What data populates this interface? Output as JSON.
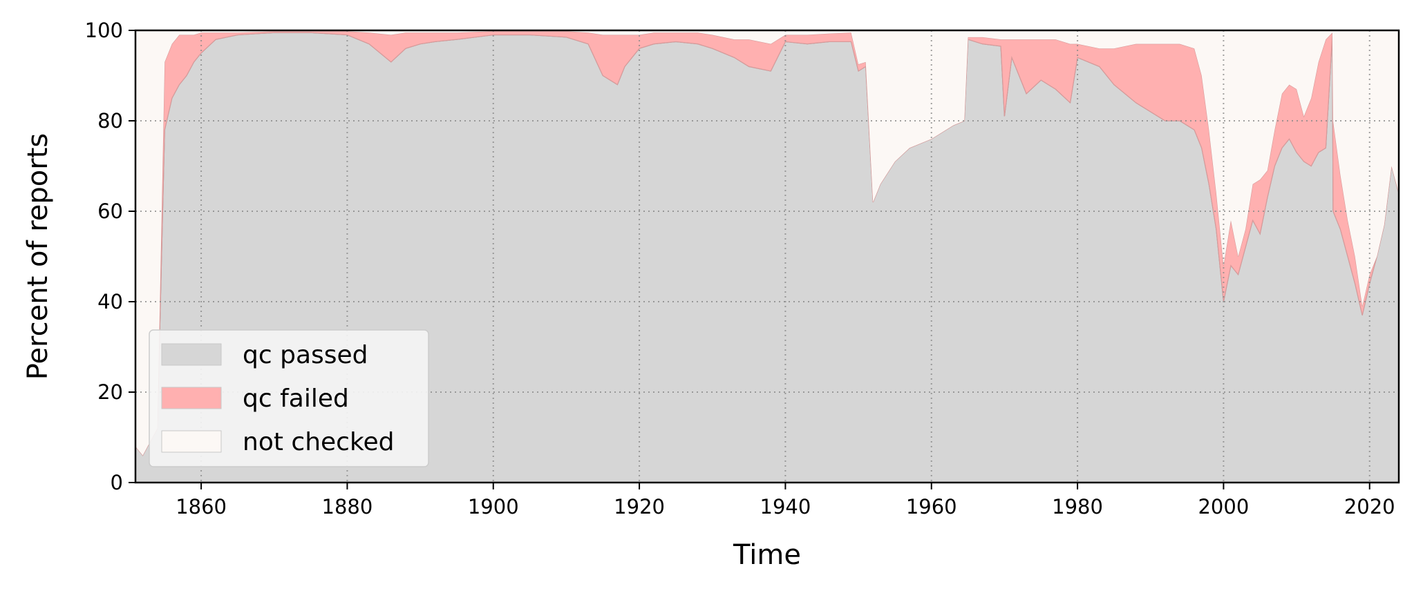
{
  "chart_data": {
    "type": "area",
    "stacked": true,
    "title": "",
    "xlabel": "Time",
    "ylabel": "Percent of reports",
    "xlim": [
      1851,
      2024
    ],
    "ylim": [
      0,
      100
    ],
    "xticks": [
      1860,
      1880,
      1900,
      1920,
      1940,
      1960,
      1980,
      2000,
      2020
    ],
    "yticks": [
      0,
      20,
      40,
      60,
      80,
      100
    ],
    "grid": true,
    "legend_position": "lower-left",
    "colors": {
      "qc_passed": "#d6d6d6",
      "qc_failed": "#ffb0b0",
      "not_checked": "#fcf8f5"
    },
    "x": [
      1851,
      1852,
      1853,
      1854,
      1855,
      1856,
      1857,
      1858,
      1859,
      1860,
      1862,
      1865,
      1870,
      1875,
      1880,
      1883,
      1886,
      1888,
      1890,
      1892,
      1895,
      1900,
      1905,
      1910,
      1913,
      1915,
      1917,
      1918,
      1920,
      1922,
      1925,
      1928,
      1930,
      1933,
      1935,
      1938,
      1940,
      1943,
      1946,
      1949,
      1950,
      1951,
      1952,
      1953,
      1955,
      1957,
      1960,
      1963,
      1964.5,
      1965,
      1967,
      1969.5,
      1970,
      1971,
      1973,
      1975,
      1977,
      1979,
      1980,
      1983,
      1985,
      1988,
      1990,
      1992,
      1994,
      1996,
      1997,
      1998,
      1999,
      2000,
      2001,
      2002,
      2003,
      2004,
      2005,
      2006,
      2007,
      2008,
      2009,
      2010,
      2011,
      2012,
      2013,
      2014,
      2014.9,
      2015,
      2016,
      2017,
      2018,
      2019,
      2020,
      2021,
      2022,
      2023,
      2024
    ],
    "series": [
      {
        "name": "qc passed",
        "values": [
          8,
          6,
          9,
          12,
          78,
          85,
          88,
          90,
          93,
          95,
          98,
          99,
          99.5,
          99.5,
          99,
          97,
          93,
          96,
          97,
          97.5,
          98,
          99,
          99,
          98.5,
          97,
          90,
          88,
          92,
          96,
          97,
          97.5,
          97,
          96,
          94,
          92,
          91,
          97.5,
          97,
          97.5,
          97.5,
          91,
          92,
          62,
          66,
          71,
          74,
          76,
          79,
          80,
          98,
          97,
          96.5,
          81,
          94,
          86,
          89,
          87,
          84,
          94,
          92,
          88,
          84,
          82,
          80,
          80,
          78,
          74,
          66,
          56,
          40,
          48,
          46,
          52,
          58,
          55,
          63,
          70,
          74,
          76,
          73,
          71,
          70,
          73,
          74,
          99,
          60,
          56,
          50,
          44,
          37,
          44,
          50,
          57,
          70,
          64
        ]
      },
      {
        "name": "qc failed",
        "values": [
          0,
          0,
          0,
          0,
          15,
          12,
          11,
          9,
          6,
          4.5,
          1.5,
          0.5,
          0.3,
          0.3,
          0.8,
          2.5,
          6,
          3.5,
          2.5,
          2,
          1.5,
          0.8,
          0.8,
          1.3,
          2.5,
          9,
          11,
          7,
          3,
          2.5,
          2,
          2.5,
          3,
          4,
          6,
          6,
          1.5,
          2,
          1.8,
          2,
          1.5,
          1,
          0,
          0,
          0,
          0,
          0,
          0,
          0,
          0.5,
          1.5,
          1.5,
          17,
          4,
          12,
          9,
          11,
          13,
          3,
          4,
          8,
          13,
          15,
          17,
          17,
          18,
          16,
          12,
          8,
          8,
          10,
          4,
          4,
          8,
          12,
          6,
          8,
          12,
          12,
          14,
          10,
          15,
          20,
          24,
          0.5,
          20,
          12,
          8,
          6,
          2,
          2,
          0,
          0,
          0,
          0
        ]
      },
      {
        "name": "not checked",
        "values": [
          92,
          94,
          91,
          88,
          7,
          3,
          1,
          1,
          1,
          0.5,
          0.5,
          0.5,
          0.2,
          0.2,
          0.2,
          0.5,
          1,
          0.5,
          0.5,
          0.5,
          0.5,
          0.2,
          0.2,
          0.2,
          0.5,
          1,
          1,
          1,
          1,
          0.5,
          0.5,
          0.5,
          1,
          2,
          2,
          3,
          1,
          1,
          0.7,
          0.5,
          7.5,
          7,
          38,
          34,
          29,
          26,
          24,
          21,
          20,
          1.5,
          1.5,
          2,
          2,
          2,
          2,
          2,
          2,
          3,
          3,
          4,
          4,
          3,
          3,
          3,
          3,
          4,
          10,
          22,
          36,
          52,
          42,
          50,
          44,
          34,
          33,
          31,
          22,
          14,
          12,
          13,
          19,
          15,
          7,
          2,
          0.5,
          20,
          32,
          42,
          50,
          61,
          54,
          50,
          43,
          30,
          36
        ]
      }
    ]
  }
}
